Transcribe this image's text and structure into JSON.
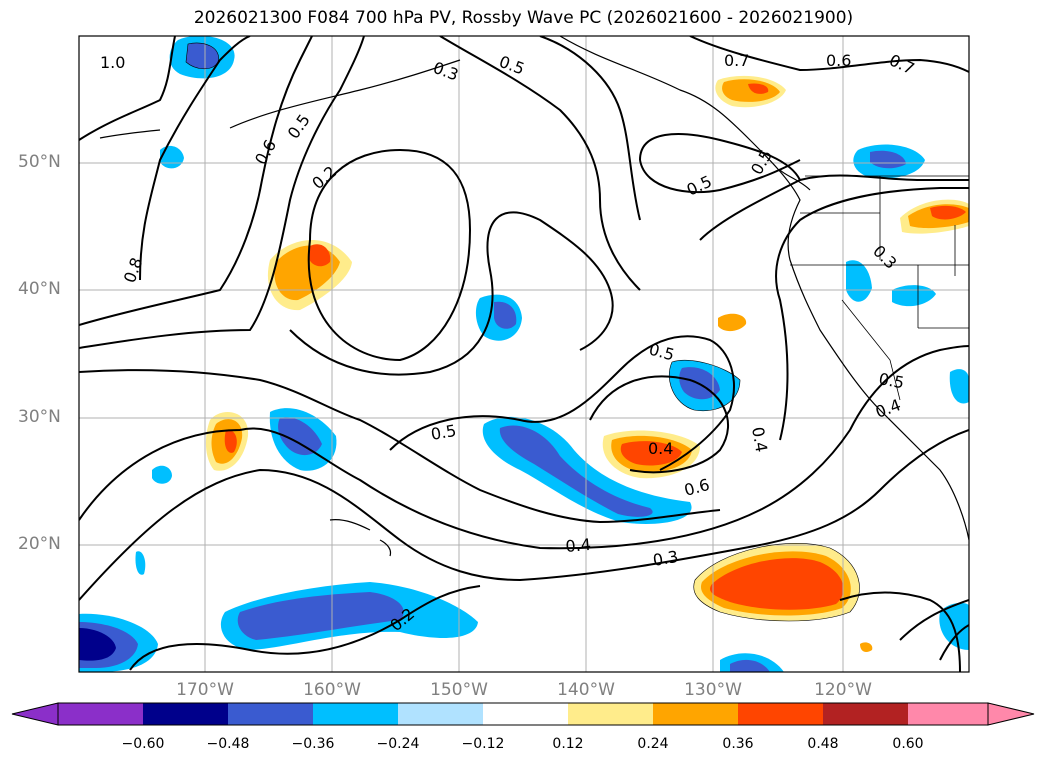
{
  "title": "2026021300 F084 700 hPa PV, Rossby Wave PC (2026021600 - 2026021900)",
  "map": {
    "lat_ticks": [
      "50°N",
      "40°N",
      "30°N",
      "20°N"
    ],
    "lon_ticks": [
      "170°W",
      "160°W",
      "150°W",
      "140°W",
      "130°W",
      "120°W"
    ],
    "contour_labels": [
      "1.0",
      "0.3",
      "0.5",
      "0.7",
      "0.6",
      "0.7",
      "0.6",
      "0.5",
      "0.2",
      "0.5",
      "0.8",
      "0.3",
      "0.5",
      "0.5",
      "0.4",
      "0.4",
      "0.5",
      "0.4",
      "0.5",
      "0.6",
      "0.4",
      "0.3",
      "0.2"
    ]
  },
  "colorbar": {
    "labels": [
      "−0.60",
      "−0.48",
      "−0.36",
      "−0.24",
      "−0.12",
      "0.12",
      "0.24",
      "0.36",
      "0.48",
      "0.60"
    ],
    "colors": [
      "#8b2fc9",
      "#00008b",
      "#3a5bd0",
      "#00bfff",
      "#b0e2ff",
      "#ffffff",
      "#ffec8b",
      "#ffa500",
      "#ff4500",
      "#b22222",
      "#ff88aa"
    ]
  }
}
